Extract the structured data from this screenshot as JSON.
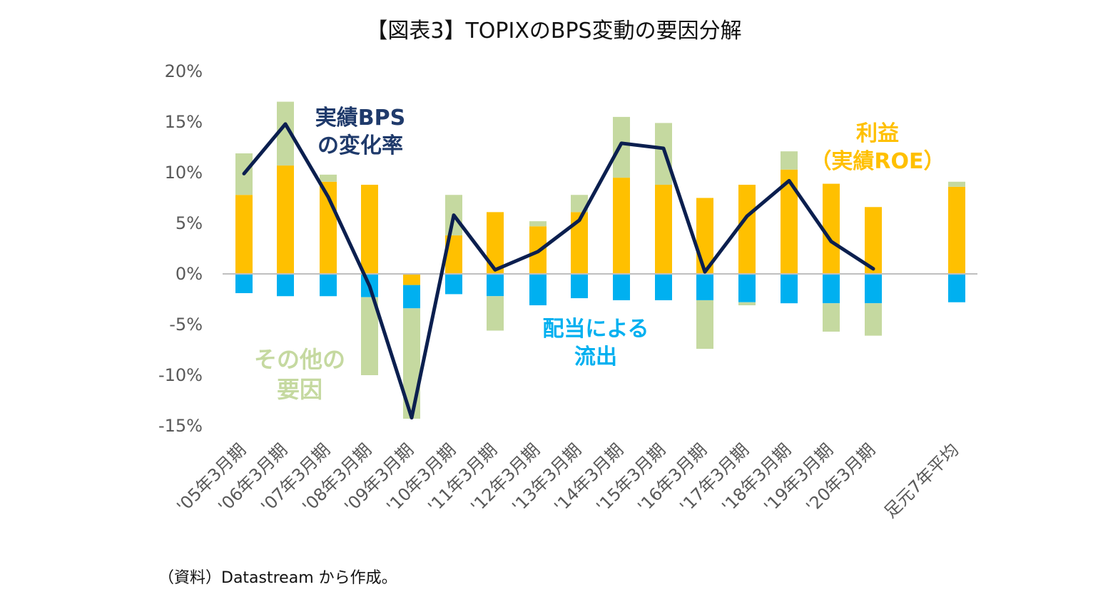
{
  "chart_data": {
    "type": "bar",
    "stacked": true,
    "title": "【図表3】TOPIXのBPS変動の要因分解",
    "categories": [
      "'05年3月期",
      "'06年3月期",
      "'07年3月期",
      "'08年3月期",
      "'09年3月期",
      "'10年3月期",
      "'11年3月期",
      "'12年3月期",
      "'13年3月期",
      "'14年3月期",
      "'15年3月期",
      "'16年3月期",
      "'17年3月期",
      "'18年3月期",
      "'19年3月期",
      "'20年3月期",
      "足元7年平均"
    ],
    "yticks": [
      "20%",
      "15%",
      "10%",
      "5%",
      "0%",
      "-5%",
      "-10%",
      "-15%"
    ],
    "ylim": [
      -15,
      20
    ],
    "grid": false,
    "series": [
      {
        "name": "利益（実績ROE）",
        "color": "#FFC000",
        "values": [
          7.8,
          10.7,
          9.1,
          8.8,
          -1.1,
          3.8,
          6.1,
          4.7,
          6.1,
          9.5,
          8.8,
          7.5,
          8.8,
          10.3,
          8.9,
          6.6,
          8.6
        ]
      },
      {
        "name": "配当による流出",
        "color": "#00B0F0",
        "values": [
          -1.9,
          -2.2,
          -2.2,
          -2.3,
          -2.3,
          -2.0,
          -2.2,
          -3.1,
          -2.4,
          -2.6,
          -2.6,
          -2.6,
          -2.8,
          -2.9,
          -2.9,
          -2.9,
          -2.8
        ]
      },
      {
        "name": "その他の要因",
        "color": "#C5D9A0",
        "values": [
          4.1,
          6.3,
          0.7,
          -7.7,
          -10.9,
          4.0,
          -3.4,
          0.5,
          1.7,
          6.0,
          6.1,
          -4.8,
          -0.3,
          1.8,
          -2.8,
          -3.2,
          0.5
        ]
      },
      {
        "name": "実績BPSの変化率",
        "type": "line",
        "color": "#0B1F4F",
        "values": [
          9.9,
          14.8,
          7.6,
          -1.2,
          -14.2,
          5.8,
          0.4,
          2.2,
          5.3,
          12.9,
          12.4,
          0.2,
          5.7,
          9.2,
          3.2,
          0.5,
          null
        ]
      }
    ]
  },
  "annotations": {
    "bps": "実績BPS\nの変化率",
    "profit": "利益\n（実績ROE）",
    "dividend": "配当による\n流出",
    "other": "その他の\n要因"
  },
  "colors": {
    "bps": "#1F3A6B",
    "profit": "#FFC000",
    "dividend": "#00B0F0",
    "other": "#C5D9A0",
    "axis": "#BFBFBF",
    "tick_text": "#595959"
  },
  "source": "（資料）Datastream から作成。"
}
